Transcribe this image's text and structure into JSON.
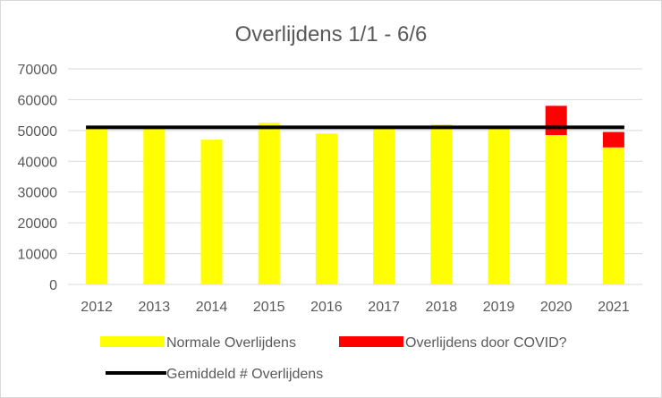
{
  "chart_data": {
    "type": "bar",
    "stacked": true,
    "title": "Overlijdens 1/1 - 6/6",
    "xlabel": "",
    "ylabel": "",
    "categories": [
      "2012",
      "2013",
      "2014",
      "2015",
      "2016",
      "2017",
      "2018",
      "2019",
      "2020",
      "2021"
    ],
    "ylim": [
      0,
      70000
    ],
    "yticks": [
      0,
      10000,
      20000,
      30000,
      40000,
      50000,
      60000,
      70000
    ],
    "ytick_labels": [
      "0",
      "10000",
      "20000",
      "30000",
      "40000",
      "50000",
      "60000",
      "70000"
    ],
    "grid": true,
    "legend_placement": "bottom",
    "series": [
      {
        "name": "Normale Overlijdens",
        "color": "#ffff00",
        "values": [
          51000,
          51000,
          47000,
          52500,
          49000,
          51000,
          52000,
          50500,
          48500,
          44500
        ]
      },
      {
        "name": "Overlijdens door COVID?",
        "color": "#ff0000",
        "values": [
          0,
          0,
          0,
          0,
          0,
          0,
          0,
          0,
          9500,
          5000
        ]
      }
    ],
    "reference_line": {
      "name": "Gemiddeld # Overlijdens",
      "color": "#000000",
      "value": 51000
    }
  }
}
